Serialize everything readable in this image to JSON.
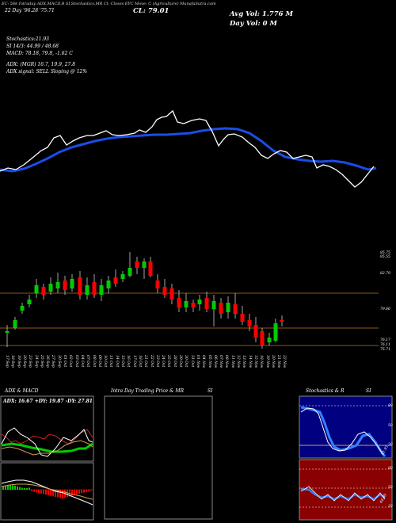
{
  "header": {
    "info_strip": "EC: 58k Intraday ADX,MACD,B   SI,Stochastics,MR    Cl: Closes EYC   Move: C   (Agriculture) MunafaSutra.com",
    "dates_line": "22 Day  '96.28  '75.71",
    "close_label": "CL: 79.01",
    "avg_vol": "Avg Vol: 1.776 M",
    "day_vol": "Day Vol: 0  M",
    "stochastics": "Stochastics:21.93",
    "si": "SI 14/3: 44.99 / 48.68",
    "macd": "MACD: 78.18, 79.8, -1.62  C",
    "adx": "ADX:                    (MGR) 16.7, 19.9, 27.8",
    "adx_signal": "ADX  signal: SELL  Sloping @ 12%"
  },
  "price_axis": [
    "85.75",
    "85.55",
    "82.79",
    "79.66",
    "76.17",
    "76.11",
    "75.71"
  ],
  "date_labels": [
    "17 Sep",
    "18 Sep",
    "19 Sep",
    "20 Sep",
    "23 Sep",
    "24 Sep",
    "25 Sep",
    "26 Sep",
    "27 Sep",
    "30 Sep",
    "01 Oct",
    "02 Oct",
    "03 Oct",
    "04 Oct",
    "07 Oct",
    "08 Oct",
    "09 Oct",
    "10 Oct",
    "11 Oct",
    "14 Oct",
    "15 Oct",
    "16 Oct",
    "17 Oct",
    "18 Oct",
    "21 Oct",
    "22 Oct",
    "23 Oct",
    "24 Oct",
    "25 Oct",
    "28 Oct",
    "29 Oct",
    "30 Oct",
    "31 Oct",
    "01 Nov",
    "04 Nov",
    "05 Nov",
    "06 Nov",
    "07 Nov",
    "08 Nov",
    "11 Nov",
    "12 Nov",
    "13 Nov",
    "14 Nov",
    "15 Nov",
    "18 Nov",
    "19 Nov",
    "20 Nov",
    "21 Nov",
    "22 Nov"
  ],
  "panels": {
    "adx_macd": {
      "title": "ADX  & MACD",
      "values": "ADX: 16.67  +DY: 19.87  -DY: 27.81"
    },
    "intraday": {
      "title": "Intra  Day Trading Price  & MR",
      "side": "SI"
    },
    "stoch": {
      "title": "Stochastics & R",
      "side": "SI",
      "top_axis": [
        "80",
        "50",
        "20"
      ],
      "top_reading": "21.93",
      "bottom_axis": [
        "80",
        "50",
        "20"
      ],
      "bottom_reading": "44.99"
    }
  },
  "colors": {
    "up": "#00cc00",
    "down": "#ff0000",
    "ma": "#1a4de6",
    "hline": "#8b5a14",
    "panel_border": "#888888",
    "stoch_bg": "#000080",
    "si_bg": "#8b0000"
  }
}
